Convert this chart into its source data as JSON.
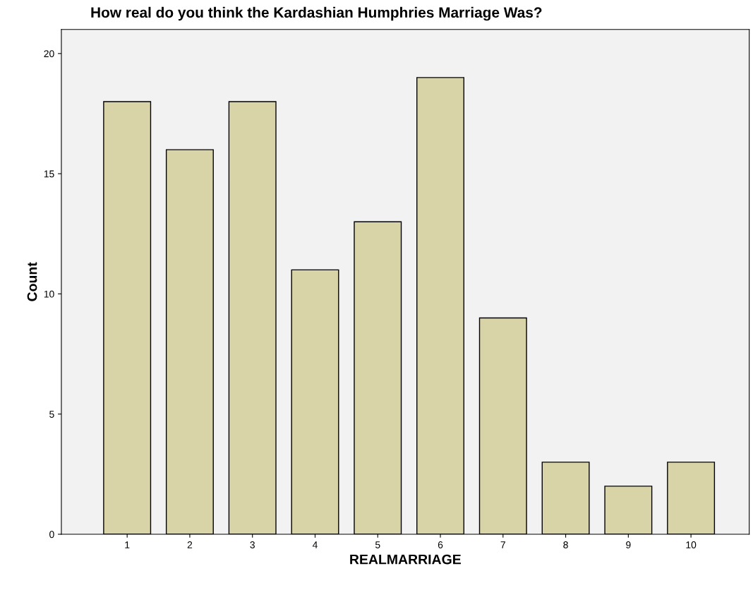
{
  "chart_data": {
    "type": "bar",
    "title": "How real do you think the Kardashian Humphries Marriage Was?",
    "xlabel": "REALMARRIAGE",
    "ylabel": "Count",
    "categories": [
      "1",
      "2",
      "3",
      "4",
      "5",
      "6",
      "7",
      "8",
      "9",
      "10"
    ],
    "values": [
      18,
      16,
      18,
      11,
      13,
      19,
      9,
      3,
      2,
      3
    ],
    "color": "#d9d4a8",
    "ylim": [
      0,
      21
    ],
    "yticks": [
      0,
      5,
      10,
      15,
      20
    ],
    "grid": false,
    "legend": false
  }
}
